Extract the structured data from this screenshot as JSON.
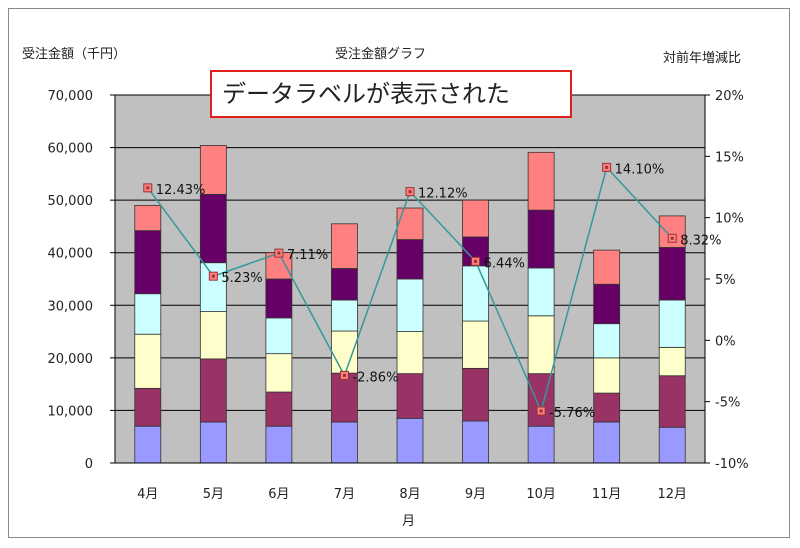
{
  "chart_data": {
    "type": "bar",
    "stacked": true,
    "secondary_line": true,
    "title": "受注金額グラフ",
    "ylabel": "受注金額（千円）",
    "y2label": "対前年増減比",
    "xlabel": "月",
    "categories": [
      "4月",
      "5月",
      "6月",
      "7月",
      "8月",
      "9月",
      "10月",
      "11月",
      "12月"
    ],
    "ylim": [
      0,
      70000
    ],
    "y_ticks": [
      "0",
      "10,000",
      "20,000",
      "30,000",
      "40,000",
      "50,000",
      "60,000",
      "70,000"
    ],
    "y2lim": [
      -10,
      20
    ],
    "y2_ticks": [
      "-10%",
      "-5%",
      "0%",
      "5%",
      "10%",
      "15%",
      "20%"
    ],
    "grid": true,
    "series": [
      {
        "values": [
          7000,
          7800,
          7000,
          7800,
          8500,
          8000,
          7000,
          7800,
          6800
        ],
        "color": "#9999ff"
      },
      {
        "values": [
          7200,
          12000,
          6500,
          9300,
          8500,
          10000,
          10000,
          5500,
          9800
        ],
        "color": "#993366"
      },
      {
        "values": [
          10300,
          9000,
          7300,
          8000,
          8000,
          9000,
          11000,
          6700,
          5400
        ],
        "color": "#ffffcc"
      },
      {
        "values": [
          7700,
          9300,
          6800,
          5900,
          10000,
          10500,
          9100,
          6500,
          9000
        ],
        "color": "#ccffff"
      },
      {
        "values": [
          12000,
          13000,
          7400,
          6000,
          7500,
          5500,
          11000,
          7500,
          10000
        ],
        "color": "#660066"
      },
      {
        "values": [
          4800,
          9300,
          5000,
          8500,
          6000,
          7000,
          11000,
          6500,
          6000
        ],
        "color": "#ff8080"
      }
    ],
    "line": {
      "values": [
        12.43,
        5.23,
        7.11,
        -2.86,
        12.12,
        6.44,
        -5.76,
        14.1,
        8.32
      ],
      "labels": [
        "12.43%",
        "5.23%",
        "7.11%",
        "-2.86%",
        "12.12%",
        "6.44%",
        "-5.76%",
        "14.10%",
        "8.32%"
      ],
      "color": "#339999",
      "marker_color": "#ff8080"
    }
  },
  "annotation": {
    "text": "データラベルが表示された",
    "border_color": "#e0201c"
  },
  "colors": {
    "plot_bg": "#c0c0c0",
    "grid": "#000000"
  }
}
